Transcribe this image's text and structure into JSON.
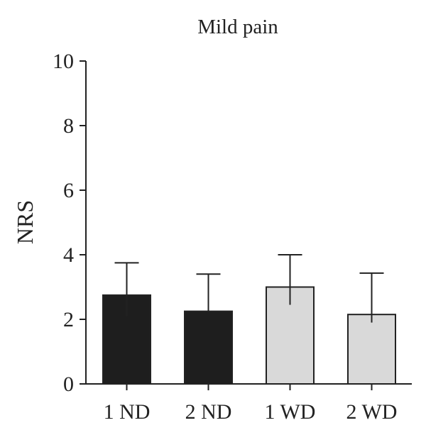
{
  "chart_data": {
    "type": "bar",
    "title": "Mild pain",
    "xlabel": "",
    "ylabel": "NRS",
    "ylim": [
      0,
      10
    ],
    "yticks": [
      0,
      2,
      4,
      6,
      8,
      10
    ],
    "categories": [
      "1 ND",
      "2 ND",
      "1 WD",
      "2 WD"
    ],
    "values": [
      2.75,
      2.25,
      3.0,
      2.15
    ],
    "errors": [
      1.0,
      1.15,
      1.0,
      1.28
    ],
    "error_lower": [
      0.65,
      0.0,
      0.55,
      0.25
    ],
    "bar_colors": [
      "#1e1e1e",
      "#1e1e1e",
      "#d9d9d9",
      "#d9d9d9"
    ],
    "bar_edge": "#222222",
    "grid": false
  }
}
